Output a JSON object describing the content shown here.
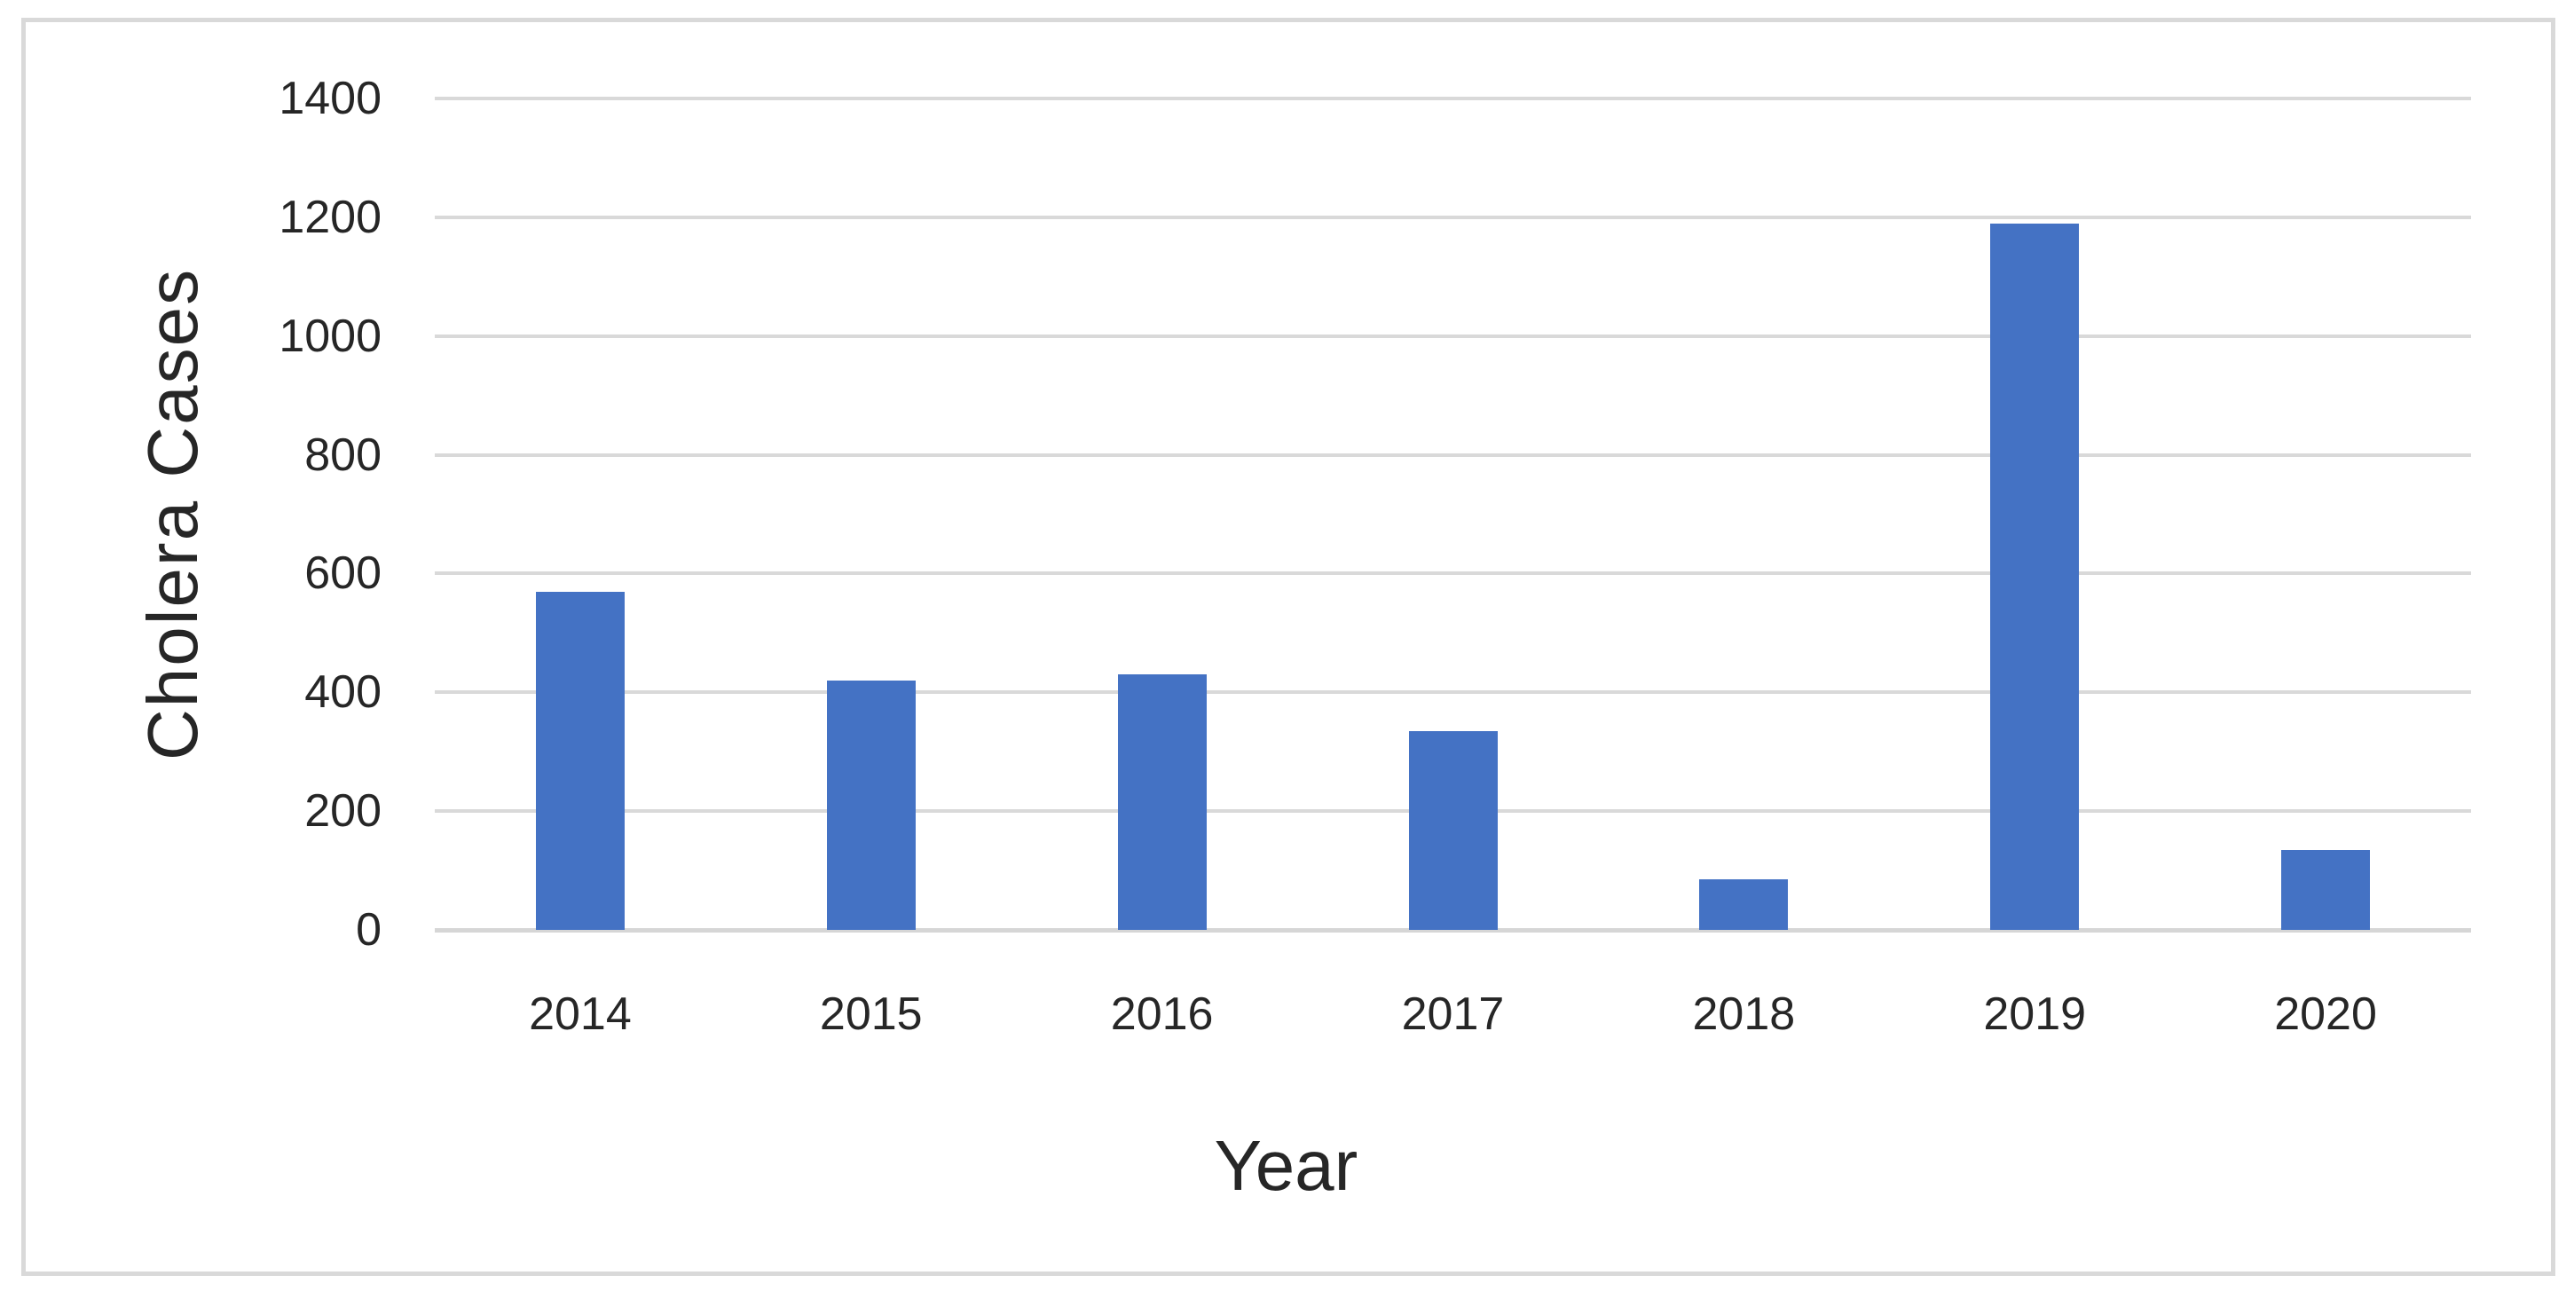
{
  "chart_data": {
    "type": "bar",
    "title": "",
    "categories": [
      "2014",
      "2015",
      "2016",
      "2017",
      "2018",
      "2019",
      "2020"
    ],
    "values": [
      570,
      420,
      430,
      335,
      85,
      1190,
      135
    ],
    "xlabel": "Year",
    "ylabel": "Cholera Cases",
    "ylim": [
      0,
      1400
    ],
    "yticks": [
      0,
      200,
      400,
      600,
      800,
      1000,
      1200,
      1400
    ],
    "grid": "horizontal",
    "legend_position": "none",
    "colors": {
      "bar": "#4472C4",
      "gridline": "#D9D9D9",
      "axis_line": "#D6D6D6",
      "chart_border": "#D9D9D9",
      "text": "#262626",
      "background": "#FFFFFF"
    }
  }
}
